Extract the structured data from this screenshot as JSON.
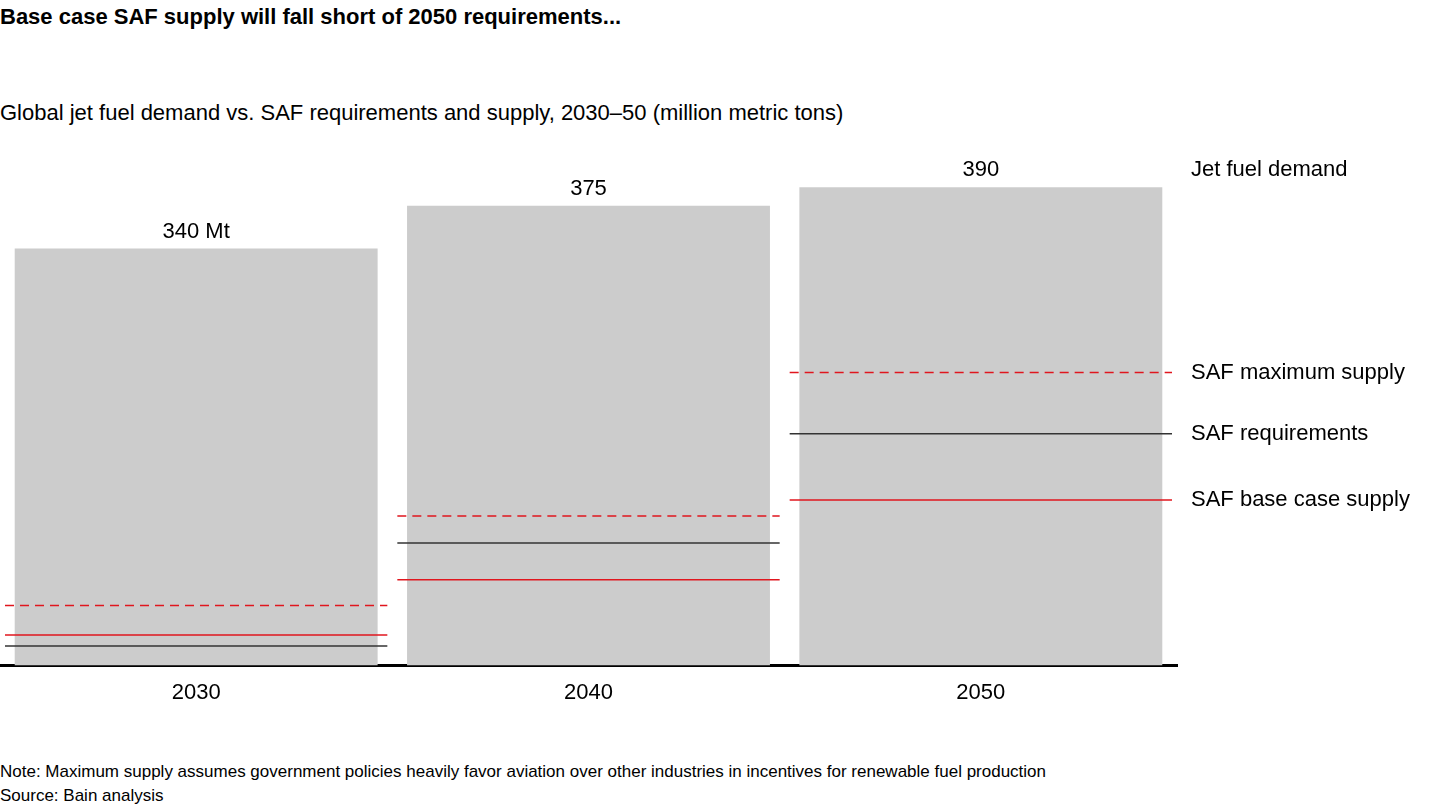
{
  "chart_data": {
    "type": "bar",
    "title": "Base case SAF supply will fall short of 2050 requirements...",
    "subtitle": "Global jet fuel demand vs. SAF requirements and supply, 2030–50 (million metric tons)",
    "note": "Note: Maximum supply assumes government policies heavily favor aviation over other industries in incentives for renewable fuel production",
    "source": "Source: Bain analysis",
    "categories": [
      "2030",
      "2040",
      "2050"
    ],
    "series": [
      {
        "name": "Jet fuel demand",
        "type": "bar",
        "color": "#cccccc",
        "values": [
          340,
          375,
          390
        ],
        "value_labels": [
          "340 Mt",
          "375",
          "390"
        ]
      },
      {
        "name": "SAF maximum supply",
        "type": "line",
        "line_style": "dashed",
        "color": "#e0161e",
        "values": [
          49,
          122,
          239
        ]
      },
      {
        "name": "SAF requirements",
        "type": "line",
        "line_style": "solid",
        "color": "#333333",
        "values": [
          16,
          100,
          189
        ]
      },
      {
        "name": "SAF base case supply",
        "type": "line",
        "line_style": "solid",
        "color": "#e0161e",
        "values": [
          25,
          70,
          135
        ]
      }
    ],
    "ylim": [
      0,
      400
    ],
    "data_labels": true,
    "tick_labels": "x",
    "grid": false
  }
}
